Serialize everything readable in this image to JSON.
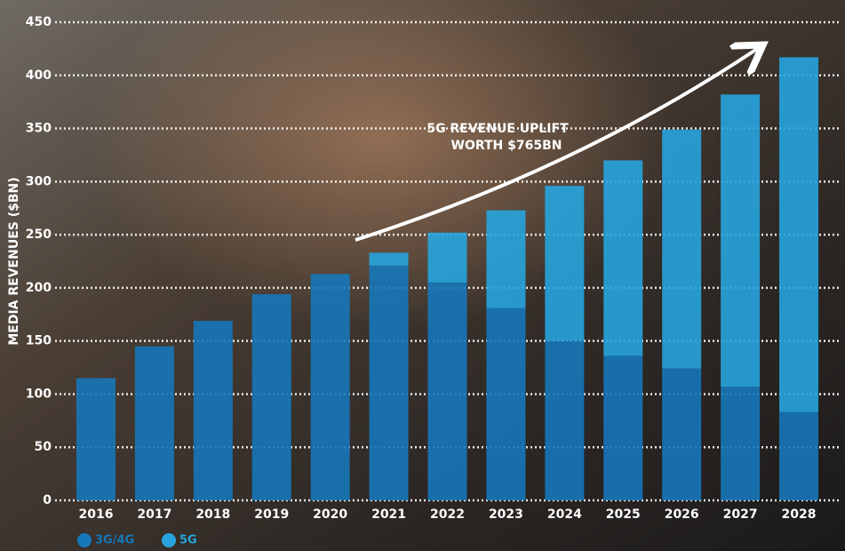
{
  "chart_data": {
    "type": "stacked-bar",
    "y_label": "MEDIA REVENUES ($BN)",
    "annotation": [
      "5G REVENUE UPLIFT",
      "WORTH $765BN"
    ],
    "categories": [
      "2016",
      "2017",
      "2018",
      "2019",
      "2020",
      "2021",
      "2022",
      "2023",
      "2024",
      "2025",
      "2026",
      "2027",
      "2028"
    ],
    "series": [
      {
        "name": "3G/4G",
        "color": "#1677b9",
        "values": [
          115,
          145,
          169,
          194,
          213,
          221,
          205,
          181,
          150,
          136,
          124,
          107,
          83
        ]
      },
      {
        "name": "5G",
        "color": "#27a4de",
        "values": [
          0,
          0,
          0,
          0,
          0,
          12,
          47,
          92,
          146,
          184,
          225,
          275,
          334
        ]
      }
    ],
    "ylim": [
      0,
      450
    ],
    "yticks": [
      0,
      50,
      100,
      150,
      200,
      250,
      300,
      350,
      400,
      450
    ],
    "grid": true
  }
}
